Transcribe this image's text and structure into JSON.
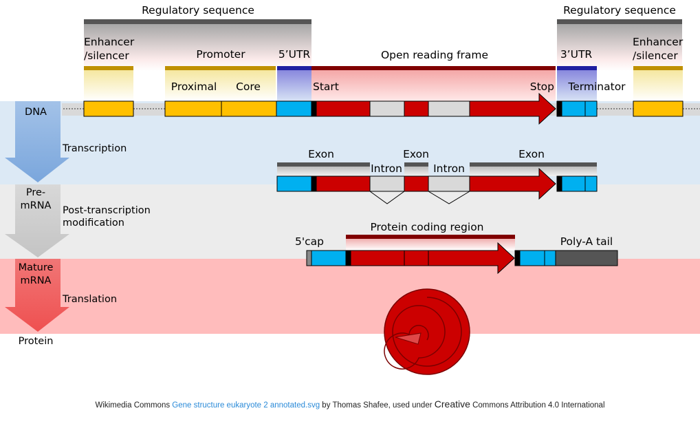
{
  "labels": {
    "reg_seq_left": "Regulatory sequence",
    "reg_seq_right": "Regulatory sequence",
    "enhancer_left_1": "Enhancer",
    "enhancer_left_2": "/silencer",
    "enhancer_right_1": "Enhancer",
    "enhancer_right_2": "/silencer",
    "promoter": "Promoter",
    "proximal": "Proximal",
    "core": "Core",
    "utr5": "5’UTR",
    "orf": "Open reading frame",
    "start": "Start",
    "stop": "Stop",
    "utr3": "3’UTR",
    "terminator": "Terminator",
    "exon1": "Exon",
    "exon2": "Exon",
    "exon3": "Exon",
    "intron1": "Intron",
    "intron2": "Intron",
    "cap5": "5'cap",
    "coding_region": "Protein coding region",
    "polya": "Poly-A tail"
  },
  "stages": {
    "dna": "DNA",
    "transcription": "Transcription",
    "premrna_1": "Pre-",
    "premrna_2": "mRNA",
    "post_1": "Post-transcription",
    "post_2": "modification",
    "mature_1": "Mature",
    "mature_2": "mRNA",
    "translation": "Translation",
    "protein": "Protein"
  },
  "colors": {
    "enhancer": "#ffc000",
    "promoter_bar": "#bf9000",
    "utr": "#00b0f0",
    "utr_bar": "#1f1fa0",
    "coding": "#cc0000",
    "coding_bar": "#800000",
    "intron": "#d9d9d9",
    "regulatory_bar": "#555555",
    "dna_band": "#dce9f5",
    "premrna_band": "#ececec",
    "mature_band": "#ffbcbc",
    "polya": "#555555"
  },
  "credit": {
    "prefix": "Wikimedia Commons ",
    "link": "Gene structure eukaryote 2 annotated.svg",
    "by": " by Thomas Shafee, used under ",
    "creative": "Creative",
    "license": " Commons Attribution 4.0 International"
  }
}
